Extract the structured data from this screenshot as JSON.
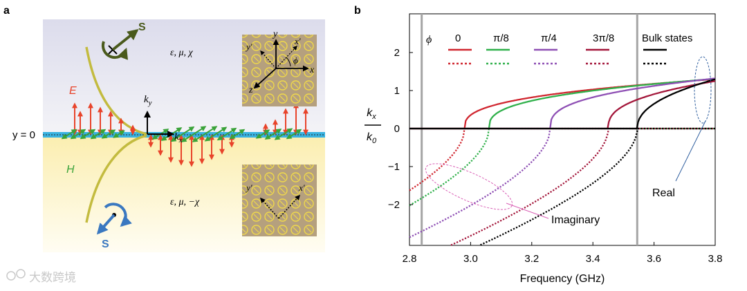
{
  "panel_a": {
    "label": "a",
    "upper_params": "ε, μ, χ",
    "lower_params": "ε, μ, −χ",
    "y0": "y = 0",
    "E": "E",
    "H": "H",
    "ky": "k",
    "ky_sub": "y",
    "kx": "k",
    "kx_sub": "x",
    "s_top": "S",
    "s_bottom": "S",
    "axis_y": "y",
    "axis_x": "x",
    "axis_z": "z",
    "axis_yp": "y′",
    "axis_xp": "x′",
    "axis_phi": "ϕ",
    "lower_yp": "y′",
    "lower_xp": "x′",
    "colors": {
      "E_arrow": "#e8432a",
      "H_arrow": "#3aa339",
      "interface": "#39b2e0",
      "S_top": "#4a5a1c",
      "S_bottom": "#3a78c0",
      "tile": "#b5a07e",
      "ring": "#f0d94a"
    }
  },
  "watermark": "大数跨境",
  "chart_data": {
    "label": "b",
    "type": "line",
    "xlabel": "Frequency (GHz)",
    "ylabel_num": "k",
    "ylabel_num_sub": "x",
    "ylabel_den": "k",
    "ylabel_den_sub": "0",
    "xlim": [
      2.8,
      3.8
    ],
    "ylim": [
      -3.0,
      3.0
    ],
    "xticks": [
      "2.8",
      "3.0",
      "3.2",
      "3.4",
      "3.6",
      "3.8"
    ],
    "xtick_values": [
      2.8,
      3.0,
      3.2,
      3.4,
      3.6,
      3.8
    ],
    "yticks": [
      "2",
      "1",
      "0",
      "−1",
      "−2"
    ],
    "ytick_values": [
      2,
      1,
      0,
      -1,
      -2
    ],
    "vlines": [
      2.84,
      3.545
    ],
    "legend_title": "ϕ",
    "legend": [
      {
        "label": "0",
        "color": "#d0262f"
      },
      {
        "label": "π/8",
        "color": "#2fb04a"
      },
      {
        "label": "π/4",
        "color": "#8e4fb4"
      },
      {
        "label": "3π/8",
        "color": "#a3163a"
      },
      {
        "label": "Bulk states",
        "color": "#000000"
      }
    ],
    "annotations": {
      "real": "Real",
      "imaginary": "Imaginary"
    },
    "series": [
      {
        "name": "0",
        "color": "#d0262f",
        "f0": 2.98,
        "amp": 1.3,
        "p": 0.35,
        "linf": 0.55
      },
      {
        "name": "π/8",
        "color": "#2fb04a",
        "f0": 3.06,
        "amp": 1.31,
        "p": 0.35,
        "linf": 0.55
      },
      {
        "name": "π/4",
        "color": "#8e4fb4",
        "f0": 3.26,
        "amp": 1.32,
        "p": 0.35,
        "linf": 0.55
      },
      {
        "name": "3π/8",
        "color": "#a3163a",
        "f0": 3.45,
        "amp": 1.25,
        "p": 0.38,
        "linf": 0.55
      },
      {
        "name": "Bulk states",
        "color": "#000000",
        "f0": 3.545,
        "amp": 1.3,
        "p": 0.45,
        "linf": 0.6
      }
    ]
  }
}
